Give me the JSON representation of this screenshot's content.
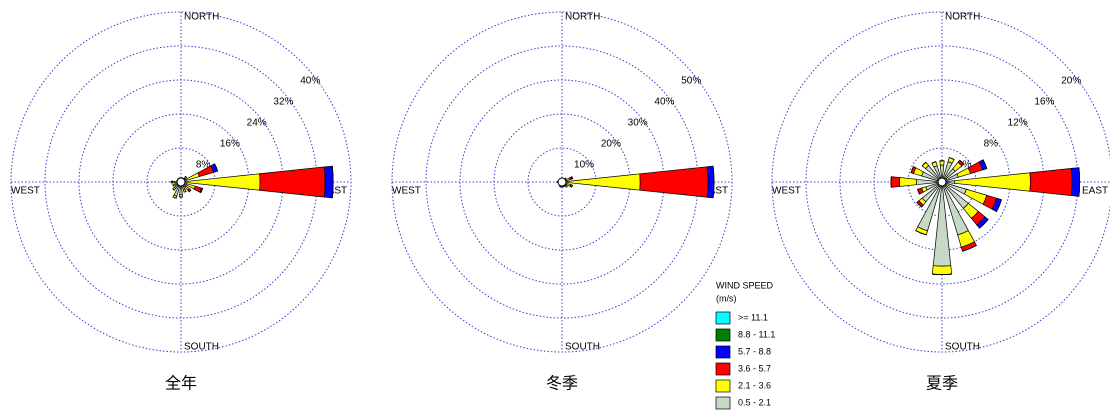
{
  "chart_data": [
    {
      "type": "windrose",
      "title": "全年",
      "compass": [
        "NORTH",
        "EAST",
        "SOUTH",
        "WEST"
      ],
      "x": [
        0,
        22.5,
        45,
        67.5,
        90,
        112.5,
        135,
        157.5,
        180,
        202.5,
        225,
        247.5,
        270,
        292.5,
        315,
        337.5
      ],
      "rlim": [
        0,
        40
      ],
      "rticks": [
        {
          "value": 8,
          "label": "8%"
        },
        {
          "value": 16,
          "label": "16%"
        },
        {
          "value": 24,
          "label": "24%"
        },
        {
          "value": 32,
          "label": "32%"
        },
        {
          "value": 40,
          "label": "40%"
        }
      ],
      "series": [
        {
          "values": [
            0,
            0,
            0,
            0,
            0,
            0,
            0,
            0,
            0,
            0,
            0,
            0,
            0,
            0,
            0,
            0
          ]
        },
        {
          "values": [
            0,
            0,
            0,
            0,
            0,
            0,
            0,
            0,
            0,
            0,
            0,
            0,
            0,
            0,
            0,
            0
          ]
        },
        {
          "values": [
            0,
            0,
            0,
            1,
            1.9,
            0.3,
            0,
            0,
            0,
            0,
            0,
            0,
            0,
            0,
            0,
            0
          ]
        },
        {
          "values": [
            0,
            0,
            0,
            3.5,
            15.3,
            1.5,
            0.5,
            0,
            0,
            0,
            0,
            0,
            0.3,
            0,
            0,
            0
          ]
        },
        {
          "values": [
            0,
            0,
            0.5,
            3,
            17.6,
            2,
            1,
            0.5,
            0.5,
            0.5,
            0.5,
            0.5,
            0.5,
            0,
            0,
            0
          ]
        },
        {
          "values": [
            1,
            1,
            1.2,
            1.5,
            1,
            1.5,
            1.5,
            2,
            3,
            3.5,
            2,
            1.5,
            1.5,
            1,
            1,
            1
          ]
        }
      ]
    },
    {
      "type": "windrose",
      "title": "冬季",
      "compass": [
        "NORTH",
        "EAST",
        "SOUTH",
        "WEST"
      ],
      "x": [
        0,
        22.5,
        45,
        67.5,
        90,
        112.5,
        135,
        157.5,
        180,
        202.5,
        225,
        247.5,
        270,
        292.5,
        315,
        337.5
      ],
      "rlim": [
        0,
        50
      ],
      "rticks": [
        {
          "value": 10,
          "label": "10%"
        },
        {
          "value": 20,
          "label": "20%"
        },
        {
          "value": 30,
          "label": "30%"
        },
        {
          "value": 40,
          "label": "40%"
        },
        {
          "value": 50,
          "label": "50%"
        }
      ],
      "series": [
        {
          "values": [
            0,
            0,
            0,
            0,
            0,
            0,
            0,
            0,
            0,
            0,
            0,
            0,
            0,
            0,
            0,
            0
          ]
        },
        {
          "values": [
            0,
            0,
            0,
            0,
            0,
            0,
            0,
            0,
            0,
            0,
            0,
            0,
            0,
            0,
            0,
            0
          ]
        },
        {
          "values": [
            0,
            0,
            0,
            0.3,
            1.7,
            0,
            0,
            0,
            0,
            0,
            0,
            0,
            0,
            0,
            0,
            0
          ]
        },
        {
          "values": [
            0,
            0,
            0,
            0.5,
            20,
            0.5,
            0,
            0,
            0,
            0,
            0,
            0,
            0,
            0,
            0,
            0
          ]
        },
        {
          "values": [
            0,
            0,
            0.5,
            1.5,
            22,
            1.5,
            0.5,
            0,
            0,
            0,
            0,
            0,
            0.5,
            0,
            0,
            0
          ]
        },
        {
          "values": [
            0.8,
            0.8,
            1,
            1,
            1,
            1.2,
            1.5,
            1.5,
            1.5,
            1.5,
            1.2,
            1,
            1,
            0.8,
            0.8,
            0.8
          ]
        }
      ]
    },
    {
      "type": "windrose",
      "title": "夏季",
      "compass": [
        "NORTH",
        "EAST",
        "SOUTH",
        "WEST"
      ],
      "x": [
        0,
        22.5,
        45,
        67.5,
        90,
        112.5,
        135,
        157.5,
        180,
        202.5,
        225,
        247.5,
        270,
        292.5,
        315,
        337.5
      ],
      "rlim": [
        0,
        20
      ],
      "rticks": [
        {
          "value": 4,
          "label": "4%"
        },
        {
          "value": 8,
          "label": "8%"
        },
        {
          "value": 12,
          "label": "12%"
        },
        {
          "value": 16,
          "label": "16%"
        },
        {
          "value": 20,
          "label": "20%"
        }
      ],
      "series": [
        {
          "values": [
            0,
            0,
            0,
            0,
            0,
            0,
            0,
            0,
            0,
            0,
            0,
            0,
            0,
            0,
            0,
            0
          ]
        },
        {
          "values": [
            0,
            0,
            0,
            0,
            0,
            0,
            0,
            0,
            0,
            0,
            0,
            0,
            0,
            0,
            0,
            0
          ]
        },
        {
          "values": [
            0,
            0,
            0,
            0.5,
            0.9,
            0.6,
            0.5,
            0,
            0,
            0,
            0,
            0,
            0,
            0,
            0,
            0
          ]
        },
        {
          "values": [
            0,
            0,
            0.3,
            1.5,
            4.9,
            1.2,
            1,
            0.5,
            0,
            0,
            0.3,
            0.5,
            1,
            0.3,
            0,
            0
          ]
        },
        {
          "values": [
            0.5,
            0.5,
            1,
            1.5,
            8.9,
            2.5,
            1.5,
            1.5,
            1,
            0.5,
            0.5,
            0.5,
            2,
            1,
            0.5,
            0.5
          ]
        },
        {
          "values": [
            2,
            2.5,
            2,
            2,
            1.5,
            3,
            4,
            6.5,
            9.9,
            6,
            3,
            2,
            3,
            2.5,
            2.5,
            2
          ]
        }
      ]
    }
  ],
  "legend": {
    "title": "WIND SPEED",
    "unit": "(m/s)",
    "items": [
      {
        "name": ">= 11.1",
        "color": "#00ffff"
      },
      {
        "name": "8.8 - 11.1",
        "color": "#008000"
      },
      {
        "name": "5.7 -  8.8",
        "color": "#0000ff"
      },
      {
        "name": "3.6 -  5.7",
        "color": "#ff0000"
      },
      {
        "name": "2.1 -  3.6",
        "color": "#ffff00"
      },
      {
        "name": "0.5 -  2.1",
        "color": "#c5d9c5"
      }
    ]
  }
}
